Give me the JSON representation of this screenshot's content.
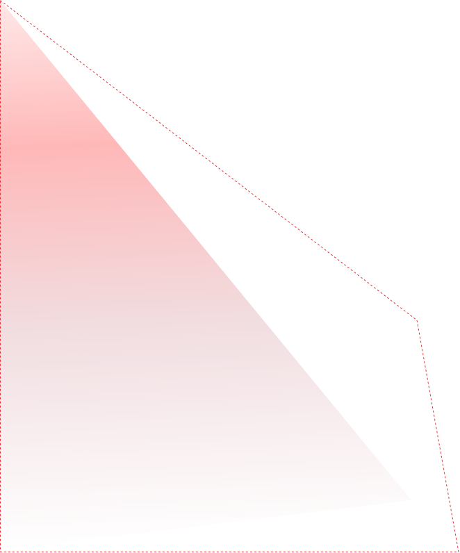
{
  "colors": {
    "outline": "#e0343a",
    "gradient_top": "#ffe8e8",
    "gradient_peak": "#ffb8b8",
    "gradient_mid": "#f1dde0",
    "gradient_bottom": "#ffffff"
  }
}
